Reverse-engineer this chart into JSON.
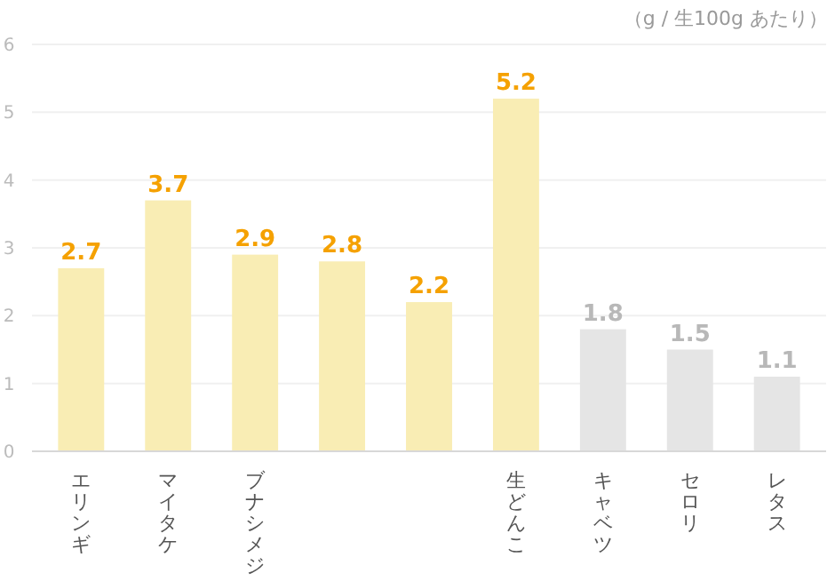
{
  "chart_data": {
    "type": "bar",
    "subtitle": "（g / 生100g あたり）",
    "categories": [
      "エリンギ",
      "マイタケ",
      "ブナシメジ",
      null,
      null,
      "生どんこ",
      "キャベツ",
      "セロリ",
      "レタス"
    ],
    "values": [
      2.7,
      3.7,
      2.9,
      2.8,
      2.2,
      5.2,
      1.8,
      1.5,
      1.1
    ],
    "colors": [
      "#f9edb4",
      "#f9edb4",
      "#f9edb4",
      "#f9edb4",
      "#f9edb4",
      "#f9edb4",
      "#e5e5e5",
      "#e5e5e5",
      "#e5e5e5"
    ],
    "ylim": [
      0,
      6
    ],
    "yticks": [
      0,
      1,
      2,
      3,
      4,
      5,
      6
    ],
    "grid": "y",
    "data_labels": true
  }
}
